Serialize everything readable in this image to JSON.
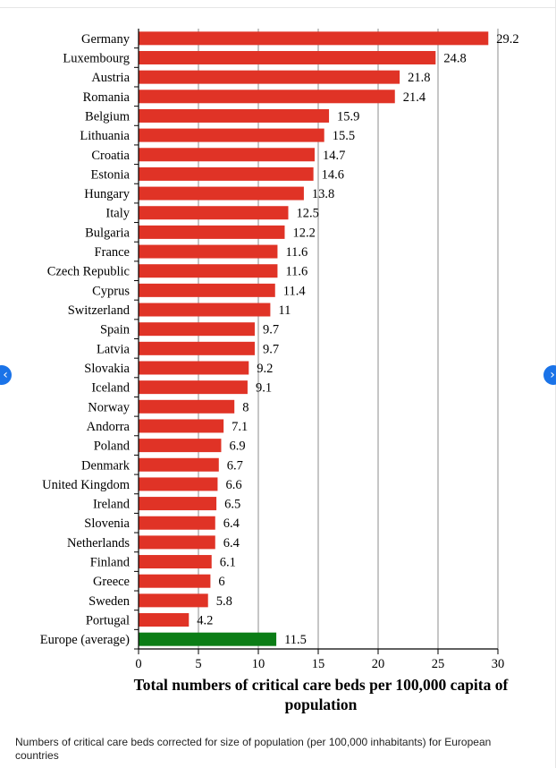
{
  "chart_data": {
    "type": "bar",
    "orientation": "horizontal",
    "categories": [
      "Germany",
      "Luxembourg",
      "Austria",
      "Romania",
      "Belgium",
      "Lithuania",
      "Croatia",
      "Estonia",
      "Hungary",
      "Italy",
      "Bulgaria",
      "France",
      "Czech Republic",
      "Cyprus",
      "Switzerland",
      "Spain",
      "Latvia",
      "Slovakia",
      "Iceland",
      "Norway",
      "Andorra",
      "Poland",
      "Denmark",
      "United Kingdom",
      "Ireland",
      "Slovenia",
      "Netherlands",
      "Finland",
      "Greece",
      "Sweden",
      "Portugal",
      "Europe (average)"
    ],
    "values": [
      29.2,
      24.8,
      21.8,
      21.4,
      15.9,
      15.5,
      14.7,
      14.6,
      13.8,
      12.5,
      12.2,
      11.6,
      11.6,
      11.4,
      11,
      9.7,
      9.7,
      9.2,
      9.1,
      8,
      7.1,
      6.9,
      6.7,
      6.6,
      6.5,
      6.4,
      6.4,
      6.1,
      6,
      5.8,
      4.2,
      11.5
    ],
    "value_labels": [
      "29.2",
      "24.8",
      "21.8",
      "21.4",
      "15.9",
      "15.5",
      "14.7",
      "14.6",
      "13.8",
      "12.5",
      "12.2",
      "11.6",
      "11.6",
      "11.4",
      "11",
      "9.7",
      "9.7",
      "9.2",
      "9.1",
      "8",
      "7.1",
      "6.9",
      "6.7",
      "6.6",
      "6.5",
      "6.4",
      "6.4",
      "6.1",
      "6",
      "5.8",
      "4.2",
      "11.5"
    ],
    "xlabel_lines": [
      "Total numbers of critical care beds per 100,000 capita of",
      "population"
    ],
    "ylabel": "",
    "title": "",
    "xlim": [
      0,
      30
    ],
    "xticks": [
      0,
      5,
      10,
      15,
      20,
      25,
      30
    ],
    "grid": "vertical",
    "colors": {
      "bar": "#e03326",
      "highlight": "#0b7d16",
      "grid": "#8c8c8c"
    },
    "highlight_category": "Europe (average)"
  },
  "caption": "Numbers of critical care beds corrected for size of population (per 100,000 inhabitants) for European countries",
  "nav": {
    "prev_icon": "‹",
    "next_icon": "›"
  }
}
